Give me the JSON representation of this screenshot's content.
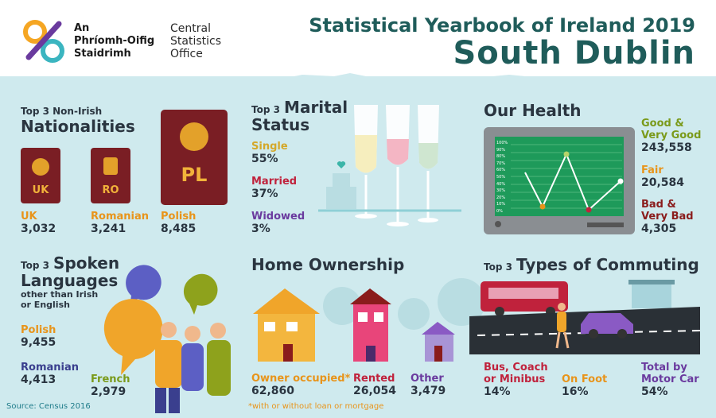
{
  "header": {
    "org_irish_1": "An",
    "org_irish_2": "Phríomh-Oifig",
    "org_irish_3": "Staidrimh",
    "org_english_1": "Central",
    "org_english_2": "Statistics",
    "org_english_3": "Office",
    "title": "Statistical Yearbook of Ireland 2019",
    "subtitle": "South Dublin"
  },
  "nationalities": {
    "pre": "Top 3 Non-Irish",
    "heading": "Nationalities",
    "passports": [
      "UK",
      "RO",
      "PL"
    ],
    "items": [
      {
        "label": "UK",
        "value": "3,032"
      },
      {
        "label": "Romanian",
        "value": "3,241"
      },
      {
        "label": "Polish",
        "value": "8,485"
      }
    ]
  },
  "marital": {
    "pre": "Top 3",
    "heading_1": "Marital",
    "heading_2": "Status",
    "items": [
      {
        "label": "Single",
        "value": "55%"
      },
      {
        "label": "Married",
        "value": "37%"
      },
      {
        "label": "Widowed",
        "value": "3%"
      }
    ]
  },
  "health": {
    "heading": "Our Health",
    "monitor_ticks": [
      "100%",
      "90%",
      "80%",
      "70%",
      "60%",
      "50%",
      "40%",
      "30%",
      "20%",
      "10%",
      "0%"
    ],
    "items": [
      {
        "label_1": "Good &",
        "label_2": "Very Good",
        "value": "243,558"
      },
      {
        "label_1": "Fair",
        "label_2": "",
        "value": "20,584"
      },
      {
        "label_1": "Bad &",
        "label_2": "Very Bad",
        "value": "4,305"
      }
    ]
  },
  "languages": {
    "pre": "Top 3",
    "heading_1": "Spoken",
    "heading_2": "Languages",
    "sub_1": "other than Irish",
    "sub_2": "or English",
    "items": [
      {
        "label": "Polish",
        "value": "9,455"
      },
      {
        "label": "Romanian",
        "value": "4,413"
      },
      {
        "label": "French",
        "value": "2,979"
      }
    ]
  },
  "home": {
    "heading": "Home Ownership",
    "items": [
      {
        "label": "Owner occupied*",
        "value": "62,860"
      },
      {
        "label": "Rented",
        "value": "26,054"
      },
      {
        "label": "Other",
        "value": "3,479"
      }
    ],
    "footnote": "*with or without loan or mortgage"
  },
  "commuting": {
    "pre": "Top 3",
    "heading": "Types of Commuting",
    "items": [
      {
        "label_1": "Bus, Coach",
        "label_2": "or Minibus",
        "value": "14%"
      },
      {
        "label_1": "On Foot",
        "label_2": "",
        "value": "16%"
      },
      {
        "label_1": "Total by",
        "label_2": "Motor Car",
        "value": "54%"
      }
    ]
  },
  "source": "Source: Census 2016",
  "colors": {
    "teal_dark": "#1f5c5a",
    "bg_light": "#cfeaee",
    "orange": "#e8941a",
    "crimson": "#c0223c",
    "purple": "#6a3a9e",
    "navy": "#3a3f8e",
    "olive": "#7a9a1a"
  }
}
